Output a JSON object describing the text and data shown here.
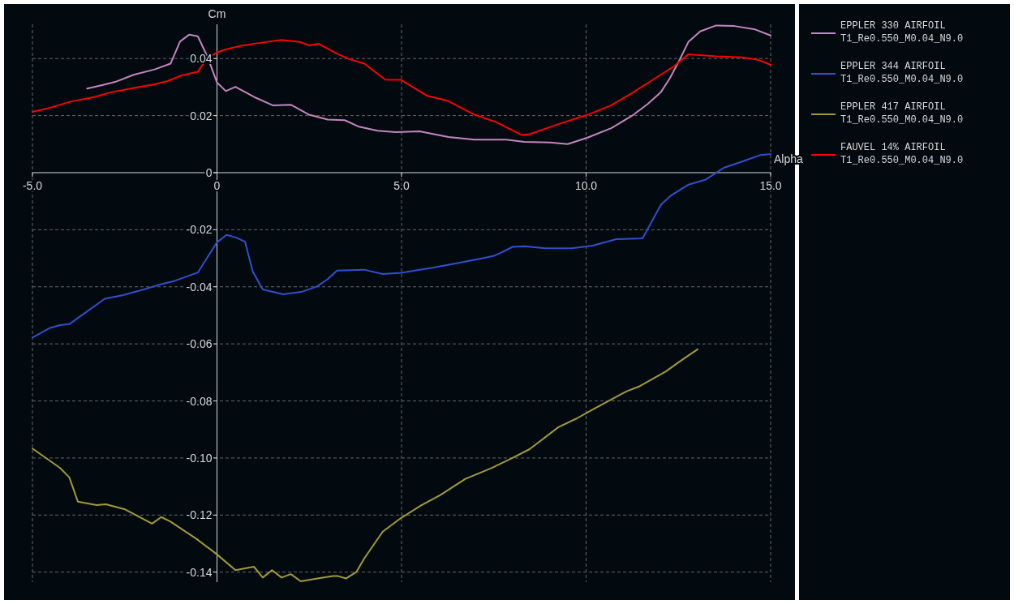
{
  "chart_data": {
    "type": "line",
    "xlabel": "Alpha",
    "ylabel": "Cm",
    "xlim": [
      -5,
      15
    ],
    "ylim": [
      -0.1435,
      0.052
    ],
    "xticks": [
      {
        "value": -5,
        "label": "-5.0"
      },
      0,
      {
        "value": 5,
        "label": "5.0"
      },
      {
        "value": 10,
        "label": "10.0"
      },
      {
        "value": 15,
        "label": "15.0"
      }
    ],
    "yticks": [
      0.04,
      0.02,
      0,
      -0.02,
      -0.04,
      -0.06,
      -0.08,
      {
        "value": -0.1,
        "label": "-0.10"
      },
      -0.12,
      -0.14
    ],
    "grid": true,
    "legend": "right",
    "line_style": "solid",
    "marker": "none",
    "series": [
      {
        "name": "EPPLER 330 AIRFOIL\nT1_Re0.550_M0.04_N9.0",
        "color": "#c585bf",
        "x": [
          -3.52,
          -3.11,
          -2.76,
          -2.26,
          -1.69,
          -1.26,
          -1.0,
          -0.75,
          -0.52,
          -0.27,
          0,
          0.24,
          0.5,
          1.01,
          1.51,
          2.0,
          2.5,
          3.0,
          3.46,
          3.85,
          4.35,
          4.85,
          5.49,
          6.27,
          6.98,
          7.83,
          8.33,
          9.04,
          9.5,
          10.04,
          10.68,
          11.24,
          11.67,
          12.03,
          12.27,
          12.52,
          12.77,
          13.09,
          13.52,
          14.02,
          14.58,
          15.0
        ],
        "values": [
          0.0295,
          0.0307,
          0.0318,
          0.0343,
          0.0362,
          0.0382,
          0.046,
          0.0484,
          0.0478,
          0.041,
          0.0316,
          0.0286,
          0.0301,
          0.0265,
          0.0236,
          0.0238,
          0.0203,
          0.0186,
          0.0184,
          0.0161,
          0.0147,
          0.0142,
          0.0145,
          0.0125,
          0.0116,
          0.0116,
          0.0108,
          0.0106,
          0.01,
          0.0123,
          0.0156,
          0.0199,
          0.0241,
          0.0283,
          0.0331,
          0.0392,
          0.0458,
          0.0495,
          0.0516,
          0.0514,
          0.0502,
          0.0481
        ]
      },
      {
        "name": "EPPLER 344 AIRFOIL\nT1_Re0.550_M0.04_N9.0",
        "color": "#3050d0",
        "x": [
          -5.0,
          -4.54,
          -4.25,
          -4.0,
          -3.04,
          -2.54,
          -1.98,
          -1.55,
          -1.19,
          -0.52,
          0,
          0.26,
          0.51,
          0.76,
          0.97,
          1.24,
          1.79,
          2.29,
          2.71,
          3.0,
          3.25,
          3.99,
          4.49,
          4.99,
          5.84,
          6.55,
          7.12,
          7.51,
          7.72,
          8.01,
          8.33,
          8.9,
          9.61,
          10.18,
          10.82,
          11.53,
          12.03,
          12.31,
          12.77,
          13.23,
          13.73,
          14.23,
          14.73,
          15.0
        ],
        "values": [
          -0.0578,
          -0.0545,
          -0.0534,
          -0.0531,
          -0.0442,
          -0.0429,
          -0.0409,
          -0.0392,
          -0.0381,
          -0.035,
          -0.0244,
          -0.0218,
          -0.0227,
          -0.0242,
          -0.0347,
          -0.0409,
          -0.0426,
          -0.0418,
          -0.0399,
          -0.0373,
          -0.0343,
          -0.034,
          -0.0355,
          -0.0351,
          -0.0333,
          -0.0316,
          -0.0302,
          -0.0291,
          -0.0279,
          -0.026,
          -0.0258,
          -0.0265,
          -0.0265,
          -0.0256,
          -0.0233,
          -0.023,
          -0.0112,
          -0.0079,
          -0.0042,
          -0.0025,
          0.0017,
          0.0039,
          0.0062,
          0.0065
        ]
      },
      {
        "name": "EPPLER 417 AIRFOIL\nT1_Re0.550_M0.04_N9.0",
        "color": "#a39b32",
        "x": [
          -5.0,
          -4.25,
          -4.0,
          -3.77,
          -3.26,
          -3.01,
          -2.51,
          -1.76,
          -1.51,
          -1.26,
          -0.55,
          0,
          0.5,
          1.0,
          1.24,
          1.49,
          1.75,
          2.0,
          2.27,
          2.79,
          3.14,
          3.28,
          3.5,
          3.78,
          3.99,
          4.49,
          4.99,
          5.52,
          6.06,
          6.73,
          7.41,
          7.97,
          8.47,
          9.25,
          9.75,
          10.25,
          11.1,
          11.46,
          12.17,
          12.52,
          13.02
        ],
        "values": [
          -0.0967,
          -0.1035,
          -0.1068,
          -0.1153,
          -0.1165,
          -0.1162,
          -0.1179,
          -0.123,
          -0.1207,
          -0.1223,
          -0.1284,
          -0.1338,
          -0.1393,
          -0.1381,
          -0.1419,
          -0.1393,
          -0.1419,
          -0.1407,
          -0.1432,
          -0.1421,
          -0.1414,
          -0.1414,
          -0.1422,
          -0.1399,
          -0.1352,
          -0.1258,
          -0.121,
          -0.1167,
          -0.1129,
          -0.1073,
          -0.1037,
          -0.1002,
          -0.0969,
          -0.0892,
          -0.0861,
          -0.0825,
          -0.0766,
          -0.0748,
          -0.0696,
          -0.0663,
          -0.0619
        ]
      },
      {
        "name": "FAUVEL 14% AIRFOIL\nT1_Re0.550_M0.04_N9.0",
        "color": "#ff0000",
        "x": [
          -5.0,
          -4.54,
          -3.97,
          -3.33,
          -2.9,
          -2.26,
          -1.69,
          -1.34,
          -0.98,
          -0.52,
          -0.27,
          0.01,
          0.23,
          0.65,
          1.15,
          1.75,
          2.25,
          2.5,
          2.75,
          3.28,
          3.57,
          3.99,
          4.56,
          4.99,
          5.7,
          6.23,
          6.98,
          7.55,
          8.26,
          8.47,
          9.25,
          10.04,
          10.68,
          11.24,
          11.81,
          12.38,
          12.77,
          13.52,
          14.23,
          14.66,
          15.0
        ],
        "values": [
          0.0213,
          0.0227,
          0.0249,
          0.0265,
          0.0281,
          0.0297,
          0.031,
          0.0321,
          0.034,
          0.0354,
          0.0401,
          0.0422,
          0.0432,
          0.0445,
          0.0455,
          0.0465,
          0.0458,
          0.0446,
          0.0452,
          0.0415,
          0.0399,
          0.0382,
          0.0326,
          0.0325,
          0.0269,
          0.0253,
          0.0203,
          0.0178,
          0.0132,
          0.0135,
          0.017,
          0.0203,
          0.0236,
          0.0279,
          0.0326,
          0.0373,
          0.0415,
          0.0408,
          0.0404,
          0.0396,
          0.0378
        ]
      }
    ]
  }
}
